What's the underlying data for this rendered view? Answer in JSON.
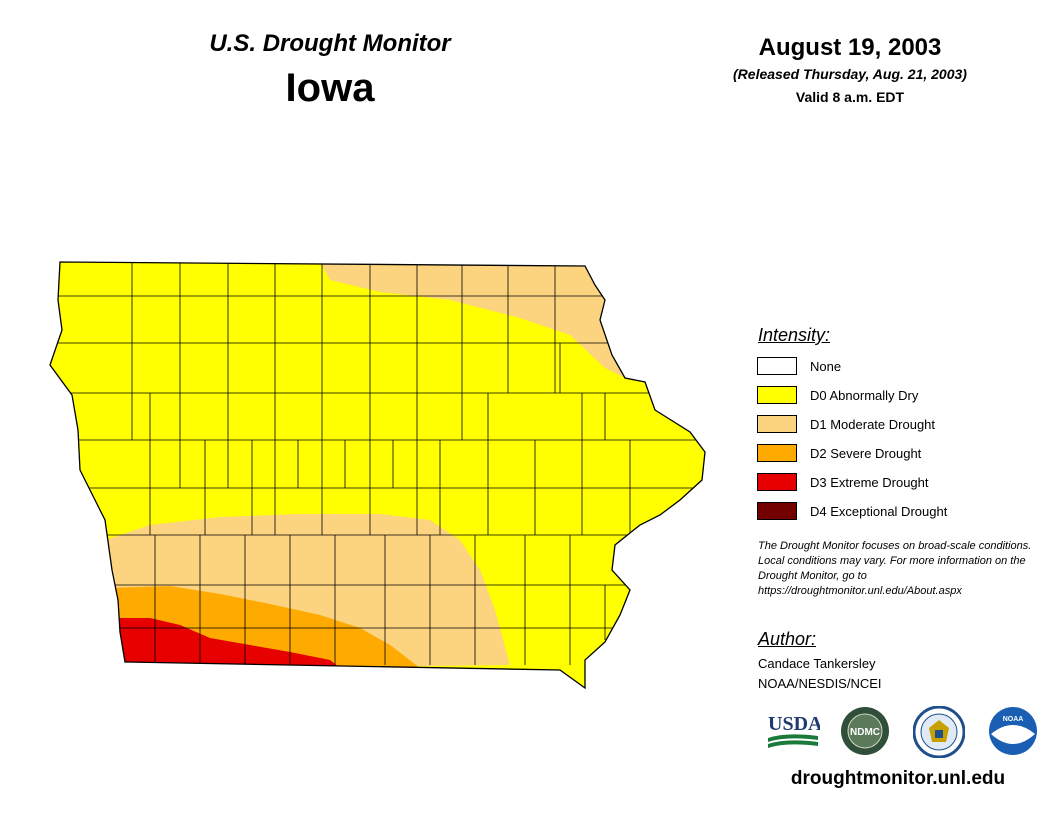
{
  "header": {
    "monitor_title": "U.S. Drought Monitor",
    "state": "Iowa",
    "date": "August 19, 2003",
    "released": "(Released Thursday, Aug. 21, 2003)",
    "valid": "Valid 8 a.m. EDT"
  },
  "colors": {
    "none": "#ffffff",
    "d0": "#ffff00",
    "d1": "#fcd37f",
    "d2": "#ffaa00",
    "d3": "#e60000",
    "d4": "#730000",
    "border": "#000000"
  },
  "legend": {
    "title": "Intensity:",
    "items": [
      {
        "label": "None",
        "color": "#ffffff"
      },
      {
        "label": "D0 Abnormally Dry",
        "color": "#ffff00"
      },
      {
        "label": "D1 Moderate Drought",
        "color": "#fcd37f"
      },
      {
        "label": "D2 Severe Drought",
        "color": "#ffaa00"
      },
      {
        "label": "D3 Extreme Drought",
        "color": "#e60000"
      },
      {
        "label": "D4 Exceptional Drought",
        "color": "#730000"
      }
    ]
  },
  "note": "The Drought Monitor focuses on broad-scale conditions. Local conditions may vary. For more information on the Drought Monitor, go to https://droughtmonitor.unl.edu/About.aspx",
  "author": {
    "title": "Author:",
    "name": "Candace Tankersley",
    "org": "NOAA/NESDIS/NCEI"
  },
  "logos": [
    {
      "name": "usda-logo",
      "text": "USDA"
    },
    {
      "name": "ndmc-logo",
      "text": "NDMC"
    },
    {
      "name": "doc-seal-logo",
      "text": ""
    },
    {
      "name": "noaa-logo",
      "text": "NOAA"
    }
  ],
  "footer_url": "droughtmonitor.unl.edu"
}
